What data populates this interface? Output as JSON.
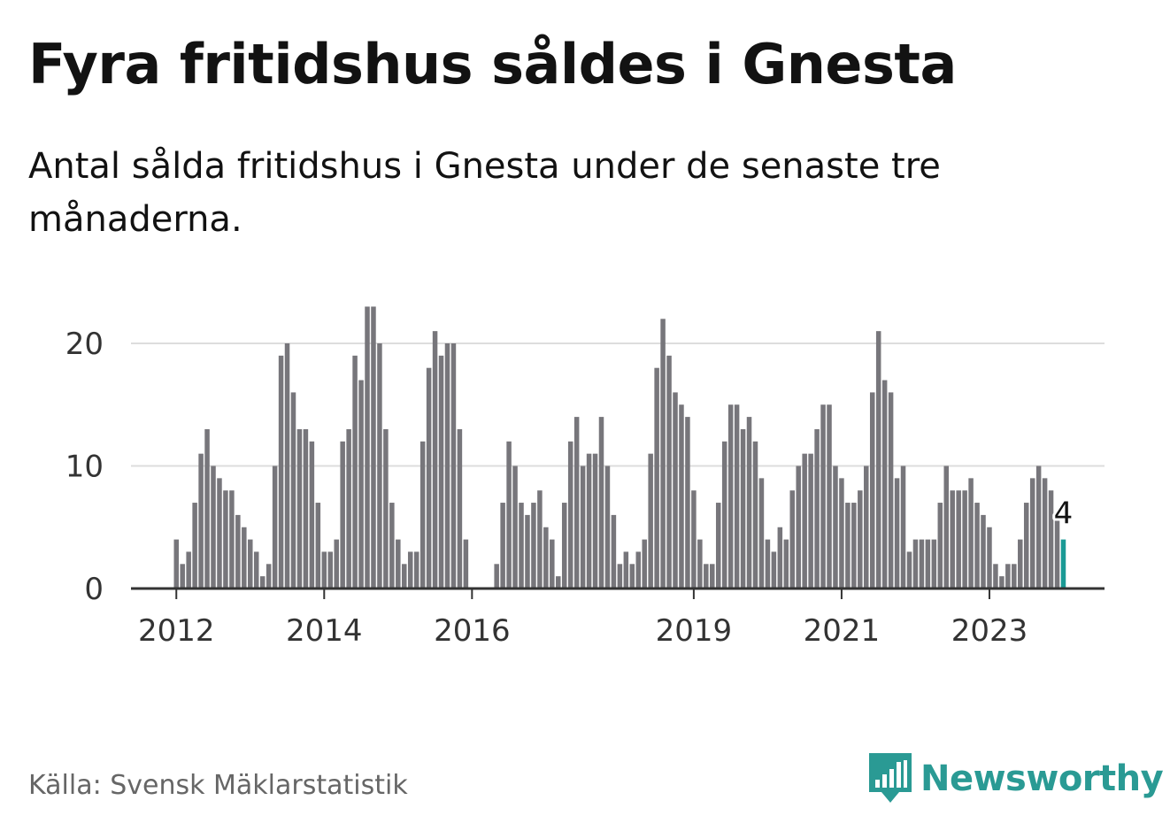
{
  "title": "Fyra fritidshus såldes i Gnesta",
  "subtitle": "Antal sålda fritidshus i Gnesta under de senaste tre månaderna.",
  "source": "Källa: Svensk Mäklarstatistik",
  "logo": {
    "name": "Newsworthy",
    "icon": "newsworthy-bar-chart-icon"
  },
  "colors": {
    "bar": "#77767b",
    "highlight": "#1a9a95",
    "grid": "#dddddd",
    "axis": "#333333"
  },
  "chart_data": {
    "type": "bar",
    "title": "Fyra fritidshus såldes i Gnesta",
    "xlabel": "",
    "ylabel": "",
    "ylim": [
      0,
      23
    ],
    "yticks": [
      0,
      10,
      20
    ],
    "xticks": [
      "2012",
      "2014",
      "2016",
      "2019",
      "2021",
      "2023"
    ],
    "grid": true,
    "first_period": "2012-01",
    "values": [
      4,
      2,
      3,
      7,
      11,
      13,
      10,
      9,
      8,
      8,
      6,
      5,
      4,
      3,
      1,
      2,
      10,
      19,
      20,
      16,
      13,
      13,
      12,
      7,
      3,
      3,
      4,
      12,
      13,
      19,
      17,
      23,
      23,
      20,
      13,
      7,
      4,
      2,
      3,
      3,
      12,
      18,
      21,
      19,
      20,
      20,
      13,
      4,
      0,
      0,
      0,
      0,
      2,
      7,
      12,
      10,
      7,
      6,
      7,
      8,
      5,
      4,
      1,
      7,
      12,
      14,
      10,
      11,
      11,
      14,
      10,
      6,
      2,
      3,
      2,
      3,
      4,
      11,
      18,
      22,
      19,
      16,
      15,
      14,
      8,
      4,
      2,
      2,
      7,
      12,
      15,
      15,
      13,
      14,
      12,
      9,
      4,
      3,
      5,
      4,
      8,
      10,
      11,
      11,
      13,
      15,
      15,
      10,
      9,
      7,
      7,
      8,
      10,
      16,
      21,
      17,
      16,
      9,
      10,
      3,
      4,
      4,
      4,
      4,
      7,
      10,
      8,
      8,
      8,
      9,
      7,
      6,
      5,
      2,
      1,
      2,
      2,
      4,
      7,
      9,
      10,
      9,
      8,
      6,
      4
    ],
    "highlight_last": {
      "value": 4,
      "label": "4"
    }
  }
}
